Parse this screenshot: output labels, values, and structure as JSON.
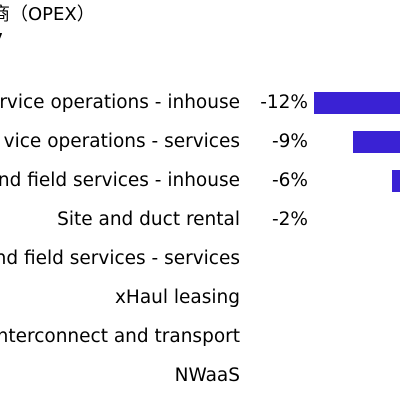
{
  "title": "商（OPEX）",
  "subtitle": "7",
  "chart_data": {
    "type": "bar",
    "orientation": "horizontal",
    "title": "商（OPEX）",
    "categories": [
      "rvice operations - inhouse",
      "vice operations  - services",
      "nd field services - inhouse",
      "Site and duct rental",
      "nd field services - services",
      "xHaul leasing",
      "nterconnect and transport",
      "NWaaS"
    ],
    "values": [
      -12,
      -9,
      -6,
      -2,
      null,
      null,
      null,
      null
    ],
    "value_labels": [
      "-12%",
      "-9%",
      "-6%",
      "-2%",
      "",
      "",
      "",
      ""
    ],
    "unit": "%",
    "bar_color": "#3a22d4",
    "grid": false,
    "legend": "none"
  }
}
